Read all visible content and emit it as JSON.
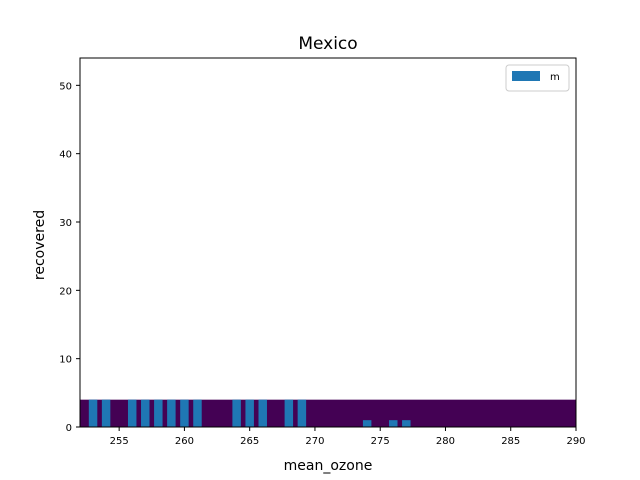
{
  "chart_data": {
    "type": "bar",
    "title": "Mexico",
    "xlabel": "mean_ozone",
    "ylabel": "recovered",
    "xlim": [
      252,
      290
    ],
    "ylim": [
      0,
      54
    ],
    "xticks": [
      255,
      260,
      265,
      270,
      275,
      280,
      285,
      290
    ],
    "yticks": [
      0,
      10,
      20,
      30,
      40,
      50
    ],
    "legend": {
      "position": "top-right",
      "entries": [
        "m"
      ]
    },
    "grid": false,
    "series": [
      {
        "name": "m",
        "color": "#1f77b4",
        "bar_width": 0.65,
        "x": [
          253,
          254,
          256,
          257,
          258,
          259,
          260,
          261,
          264,
          265,
          266,
          268,
          269,
          274,
          276,
          277
        ],
        "values": [
          4,
          4,
          4,
          4,
          4,
          4,
          4,
          4,
          4,
          4,
          4,
          4,
          4,
          1,
          1,
          1
        ]
      }
    ],
    "heatmap_background": {
      "colormap": "viridis",
      "base_color": "#440154",
      "y_range": [
        0,
        4
      ],
      "x_range": [
        252,
        290
      ]
    }
  }
}
